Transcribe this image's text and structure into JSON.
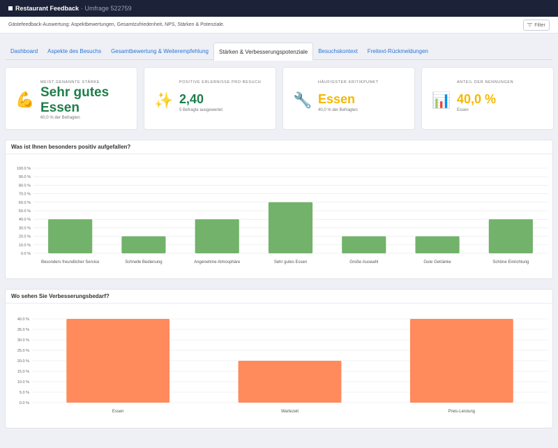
{
  "header": {
    "app_title": "Restaurant Feedback",
    "survey": "· Umfrage 522759"
  },
  "subheader": {
    "description": "Gästefeedback-Auswertung: Aspektbewertungen, Gesamtzufriedenheit, NPS, Stärken & Potenziale.",
    "filter_label": "Filter"
  },
  "tabs": [
    {
      "label": "Dashboard",
      "active": false
    },
    {
      "label": "Aspekte des Besuchs",
      "active": false
    },
    {
      "label": "Gesamtbewertung & Weiterempfehlung",
      "active": false
    },
    {
      "label": "Stärken & Verbesserungspotenziale",
      "active": true
    },
    {
      "label": "Besuchskontext",
      "active": false
    },
    {
      "label": "Freitext-Rückmeldungen",
      "active": false
    }
  ],
  "kpis": [
    {
      "icon": "flexed-biceps-icon",
      "glyph": "💪",
      "label": "Meist genannte Stärke",
      "value": "Sehr gutes Essen",
      "sub": "60,0 % der Befragten",
      "color": "#1e7e4a"
    },
    {
      "icon": "sparkles-icon",
      "glyph": "✨",
      "label": "Positive Erlebnisse pro Besuch",
      "value": "2,40",
      "sub": "5 Befragte ausgewertet",
      "color": "#1e7e4a"
    },
    {
      "icon": "wrench-icon",
      "glyph": "🔧",
      "label": "Häufigster Kritikpunkt",
      "value": "Essen",
      "sub": "40,0 % der Befragten",
      "color": "#f5b800"
    },
    {
      "icon": "bar-chart-icon",
      "glyph": "📊",
      "label": "Anteil der Nennungen",
      "value": "40,0 %",
      "sub": "Essen",
      "color": "#f5b800"
    }
  ],
  "chart_data": [
    {
      "type": "bar",
      "title": "Was ist Ihnen besonders positiv aufgefallen?",
      "categories": [
        "Besonders freundlicher Service",
        "Schnelle Bedienung",
        "Angenehme Atmosphäre",
        "Sehr gutes Essen",
        "Große Auswahl",
        "Gute Getränke",
        "Schöne Einrichtung"
      ],
      "values": [
        40,
        20,
        40,
        60,
        20,
        20,
        40
      ],
      "ylim": [
        0,
        100
      ],
      "yticks": [
        "0.0 %",
        "10.0 %",
        "20.0 %",
        "30.0 %",
        "40.0 %",
        "50.0 %",
        "60.0 %",
        "70.0 %",
        "80.0 %",
        "90.0 %",
        "100.0 %"
      ],
      "color": "#72b26a",
      "grid": true
    },
    {
      "type": "bar",
      "title": "Wo sehen Sie Verbesserungsbedarf?",
      "categories": [
        "Essen",
        "Wartezeit",
        "Preis-Leistung"
      ],
      "values": [
        40,
        20,
        40
      ],
      "ylim": [
        0,
        40
      ],
      "yticks": [
        "0.0 %",
        "5.0 %",
        "10.0 %",
        "15.0 %",
        "20.0 %",
        "25.0 %",
        "30.0 %",
        "35.0 %",
        "40.0 %"
      ],
      "color": "#ff8a5b",
      "grid": true
    }
  ]
}
